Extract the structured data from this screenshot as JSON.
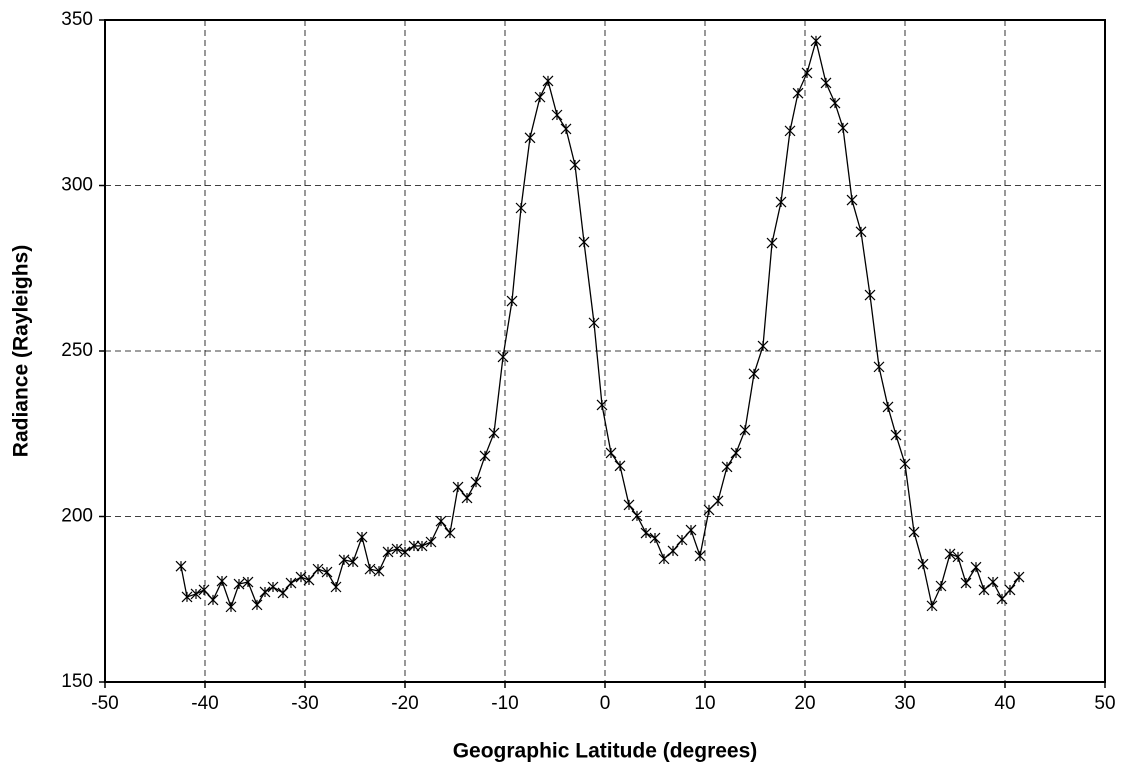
{
  "chart_data": {
    "type": "line",
    "x_label": "Geographic Latitude (degrees)",
    "y_label": "Radiance (Rayleighs)",
    "color": "#000000",
    "grid": true,
    "marker": "asterisk",
    "xlim": [
      -50,
      50
    ],
    "xticks": [
      -50,
      -40,
      -30,
      -20,
      -10,
      0,
      10,
      20,
      30,
      40,
      50
    ],
    "ylim": [
      150,
      350
    ],
    "yticks": [
      150,
      200,
      250,
      300,
      350
    ],
    "x": [
      -42.4,
      -41.8,
      -40.9,
      -40.1,
      -39.2,
      -38.3,
      -37.4,
      -36.6,
      -35.7,
      -34.8,
      -34.0,
      -33.2,
      -32.2,
      -31.4,
      -30.4,
      -29.6,
      -28.7,
      -27.8,
      -26.9,
      -26.1,
      -25.2,
      -24.3,
      -23.5,
      -22.6,
      -21.7,
      -20.8,
      -20.0,
      -19.1,
      -18.3,
      -17.4,
      -16.4,
      -15.5,
      -14.7,
      -13.8,
      -12.9,
      -12.0,
      -11.1,
      -10.2,
      -9.3,
      -8.4,
      -7.5,
      -6.5,
      -5.7,
      -4.8,
      -3.9,
      -3.0,
      -2.1,
      -1.1,
      -0.3,
      0.6,
      1.5,
      2.4,
      3.2,
      4.1,
      5.0,
      5.9,
      6.8,
      7.7,
      8.6,
      9.5,
      10.4,
      11.3,
      12.2,
      13.1,
      14.0,
      14.9,
      15.8,
      16.7,
      17.6,
      18.5,
      19.3,
      20.2,
      21.1,
      22.1,
      23.0,
      23.8,
      24.7,
      25.6,
      26.5,
      27.4,
      28.3,
      29.1,
      30.0,
      30.9,
      31.8,
      32.7,
      33.6,
      34.5,
      35.3,
      36.1,
      37.1,
      37.9,
      38.8,
      39.7,
      40.5,
      41.4
    ],
    "values": [
      185.0,
      175.7,
      176.6,
      177.8,
      174.8,
      180.5,
      172.7,
      179.6,
      180.2,
      173.3,
      177.2,
      178.7,
      176.9,
      179.9,
      181.7,
      180.8,
      184.1,
      183.2,
      178.7,
      186.9,
      186.3,
      193.8,
      184.1,
      183.5,
      189.3,
      190.2,
      189.3,
      191.1,
      191.1,
      192.3,
      198.6,
      195.0,
      208.9,
      205.6,
      210.4,
      218.3,
      225.2,
      248.2,
      265.1,
      293.2,
      314.4,
      326.7,
      331.6,
      321.3,
      317.1,
      306.2,
      282.9,
      258.5,
      233.7,
      219.2,
      215.3,
      203.5,
      200.2,
      195.0,
      193.5,
      187.2,
      189.6,
      192.9,
      195.9,
      188.1,
      202.0,
      204.7,
      215.0,
      219.2,
      226.1,
      243.1,
      251.5,
      282.6,
      295.0,
      316.5,
      327.9,
      334.0,
      343.7,
      331.0,
      324.9,
      317.4,
      295.6,
      286.0,
      266.9,
      245.2,
      233.1,
      224.6,
      215.9,
      195.3,
      185.6,
      173.0,
      179.0,
      188.7,
      187.8,
      179.9,
      184.7,
      177.8,
      180.2,
      175.1,
      177.8,
      181.7
    ]
  }
}
